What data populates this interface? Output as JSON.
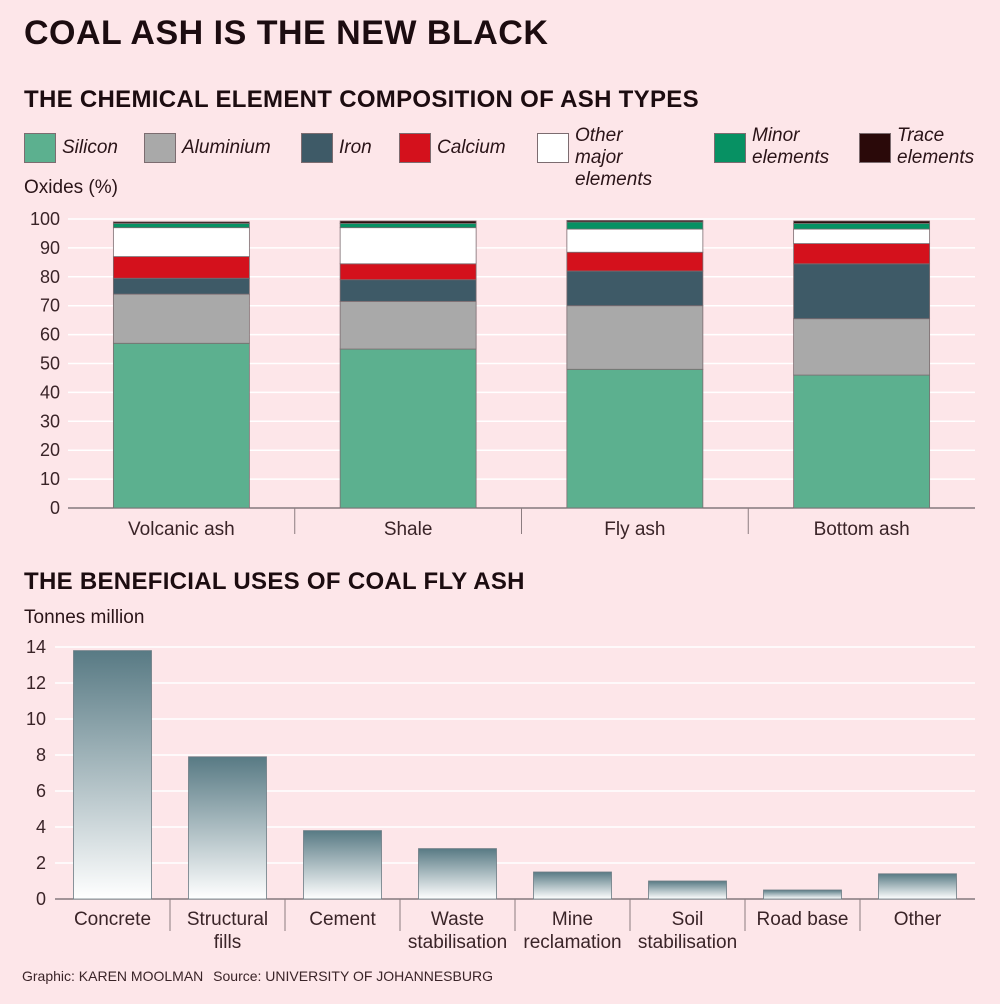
{
  "title": "COAL ASH IS THE NEW BLACK",
  "credit": {
    "graphic": "Graphic: KAREN MOOLMAN",
    "source": "Source: UNIVERSITY OF JOHANNESBURG"
  },
  "colors": {
    "background": "#fde6e9",
    "silicon": "#5cb08f",
    "aluminium": "#a9a9a9",
    "iron": "#3e5a67",
    "calcium": "#d4111c",
    "other_major": "#ffffff",
    "minor": "#079163",
    "trace": "#2a0909",
    "bar_gradient_top": "#587a84",
    "bar_gradient_bottom": "#ffffff"
  },
  "chart_data": [
    {
      "type": "bar",
      "stacked": true,
      "title": "THE CHEMICAL ELEMENT COMPOSITION OF ASH TYPES",
      "ylabel": "Oxides (%)",
      "ylim": [
        0,
        100
      ],
      "yticks": [
        "0",
        "10",
        "20",
        "30",
        "40",
        "50",
        "60",
        "70",
        "80",
        "90",
        "100"
      ],
      "categories": [
        "Volcanic ash",
        "Shale",
        "Fly ash",
        "Bottom ash"
      ],
      "series": [
        {
          "name": "Silicon",
          "color": "#5cb08f",
          "values": [
            57,
            55,
            48,
            46
          ]
        },
        {
          "name": "Aluminium",
          "color": "#a9a9a9",
          "values": [
            17,
            16.5,
            22,
            19.5
          ]
        },
        {
          "name": "Iron",
          "color": "#3e5a67",
          "values": [
            5.5,
            7.5,
            12,
            19
          ]
        },
        {
          "name": "Calcium",
          "color": "#d4111c",
          "values": [
            7.5,
            5.5,
            6.5,
            7
          ]
        },
        {
          "name": "Other major\nelements",
          "color": "#ffffff",
          "values": [
            10,
            12.5,
            8,
            5
          ]
        },
        {
          "name": "Minor\nelements",
          "color": "#079163",
          "values": [
            1.5,
            1.5,
            2.5,
            2
          ]
        },
        {
          "name": "Trace\nelements",
          "color": "#2a0909",
          "values": [
            0.5,
            0.8,
            0.5,
            0.8
          ]
        }
      ],
      "legend": "top"
    },
    {
      "type": "bar",
      "title": "THE BENEFICIAL USES OF COAL FLY ASH",
      "ylabel": "Tonnes million",
      "ylim": [
        0,
        14
      ],
      "yticks": [
        "0",
        "2",
        "4",
        "6",
        "8",
        "10",
        "12",
        "14"
      ],
      "categories": [
        "Concrete",
        "Structural\nfills",
        "Cement",
        "Waste\nstabilisation",
        "Mine\nreclamation",
        "Soil\nstabilisation",
        "Road base",
        "Other"
      ],
      "values": [
        13.8,
        7.9,
        3.8,
        2.8,
        1.5,
        1.0,
        0.5,
        1.4
      ],
      "grid": true
    }
  ]
}
